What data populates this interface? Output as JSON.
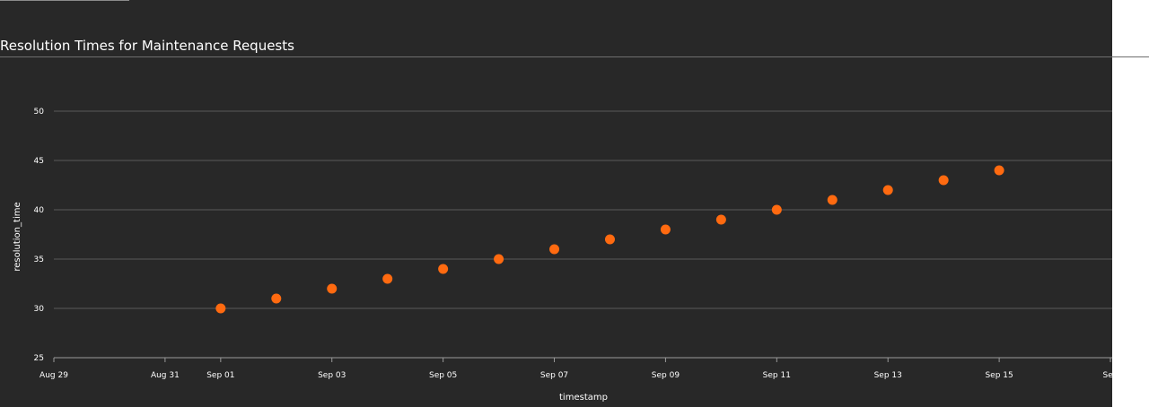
{
  "title": "Resolution Times for Maintenance Requests",
  "chart_data": {
    "type": "scatter",
    "title": "Resolution Times for Maintenance Requests",
    "xlabel": "timestamp",
    "ylabel": "resolution_time",
    "x_tick_labels": [
      "Aug 29",
      "Aug 31",
      "Sep 01",
      "Sep 03",
      "Sep 05",
      "Sep 07",
      "Sep 09",
      "Sep 11",
      "Sep 13",
      "Sep 15",
      "Sep"
    ],
    "x_tick_dates": [
      "2023-08-29",
      "2023-08-31",
      "2023-09-01",
      "2023-09-03",
      "2023-09-05",
      "2023-09-07",
      "2023-09-09",
      "2023-09-11",
      "2023-09-13",
      "2023-09-15",
      "2023-09-17"
    ],
    "y_ticks": [
      25,
      30,
      35,
      40,
      45,
      50
    ],
    "xlim": [
      "2023-08-29",
      "2023-09-17"
    ],
    "ylim": [
      25,
      55
    ],
    "grid": true,
    "series": [
      {
        "color": "#ff6a10",
        "x": [
          "2023-09-01",
          "2023-09-02",
          "2023-09-03",
          "2023-09-04",
          "2023-09-05",
          "2023-09-06",
          "2023-09-07",
          "2023-09-08",
          "2023-09-09",
          "2023-09-10",
          "2023-09-11",
          "2023-09-12",
          "2023-09-13",
          "2023-09-14",
          "2023-09-15"
        ],
        "y": [
          30,
          31,
          32,
          33,
          34,
          35,
          36,
          37,
          38,
          39,
          40,
          41,
          42,
          43,
          44
        ]
      }
    ]
  }
}
